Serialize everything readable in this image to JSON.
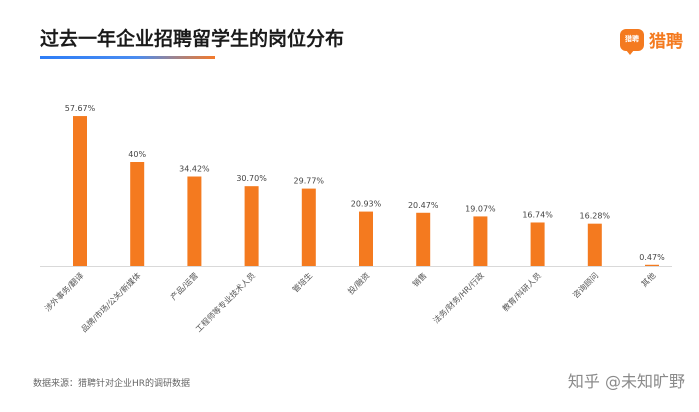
{
  "header": {
    "title": "过去一年企业招聘留学生的岗位分布",
    "brand_name": "猎聘",
    "brand_icon_text": "猎聘"
  },
  "colors": {
    "bar": "#f47a1f",
    "axis": "#d9d9d9",
    "accent_blue": "#2d7df7"
  },
  "chart_data": {
    "type": "bar",
    "title": "过去一年企业招聘留学生的岗位分布",
    "xlabel": "",
    "ylabel": "",
    "grid": false,
    "legend": "none",
    "ylim": [
      0,
      60
    ],
    "categories": [
      "涉外事务/翻译",
      "品牌/市场/公关/新媒体",
      "产品/运营",
      "工程师等专业技术人员",
      "管培生",
      "投/融资",
      "销售",
      "法务/财务/HR/行政",
      "教育/科研人员",
      "咨询顾问",
      "其他"
    ],
    "values": [
      57.67,
      40,
      34.42,
      30.7,
      29.77,
      20.93,
      20.47,
      19.07,
      16.74,
      16.28,
      0.47
    ],
    "value_labels": [
      "57.67%",
      "40%",
      "34.42%",
      "30.70%",
      "29.77%",
      "20.93%",
      "20.47%",
      "19.07%",
      "16.74%",
      "16.28%",
      "0.47%"
    ]
  },
  "footer": {
    "source": "数据来源：猎聘针对企业HR的调研数据",
    "watermark": "知乎 @未知旷野"
  }
}
